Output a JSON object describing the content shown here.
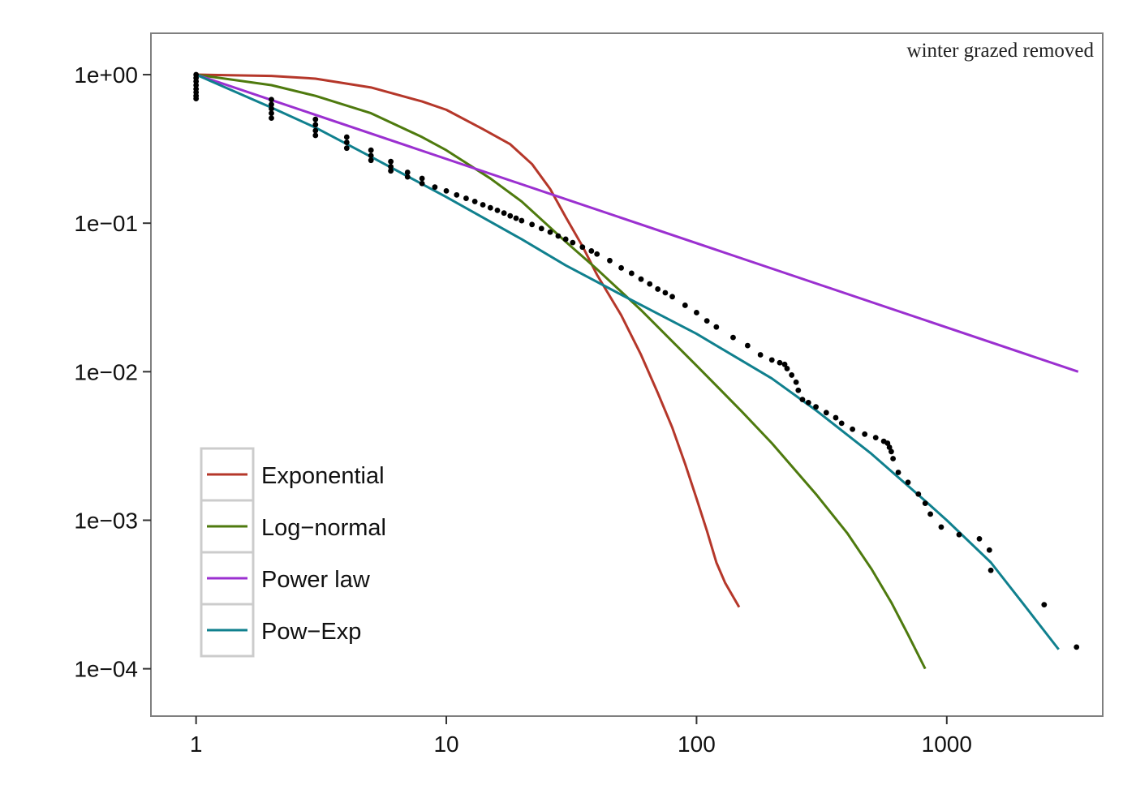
{
  "chart_data": {
    "type": "line",
    "title": "",
    "xlabel": "",
    "ylabel": "",
    "annotation": "winter grazed removed",
    "x_scale": "log10",
    "y_scale": "log10",
    "xlim": [
      0.66,
      4200
    ],
    "ylim": [
      4.8e-05,
      1.9
    ],
    "x_ticks": [
      {
        "value": 1,
        "label": "1"
      },
      {
        "value": 10,
        "label": "10"
      },
      {
        "value": 100,
        "label": "100"
      },
      {
        "value": 1000,
        "label": "1000"
      }
    ],
    "y_ticks": [
      {
        "value": 1,
        "label": "1e+00"
      },
      {
        "value": 0.1,
        "label": "1e−01"
      },
      {
        "value": 0.01,
        "label": "1e−02"
      },
      {
        "value": 0.001,
        "label": "1e−03"
      },
      {
        "value": 0.0001,
        "label": "1e−04"
      }
    ],
    "grid": false,
    "legend_position": "bottom-left",
    "legend": [
      {
        "name": "Exponential",
        "color": "#b5372a"
      },
      {
        "name": "Log−normal",
        "color": "#4e7a0e"
      },
      {
        "name": "Power law",
        "color": "#9b30d0"
      },
      {
        "name": "Pow−Exp",
        "color": "#10808e"
      }
    ],
    "series": [
      {
        "name": "Exponential",
        "color": "#b5372a",
        "points": [
          [
            1,
            1.0
          ],
          [
            2,
            0.98
          ],
          [
            3,
            0.94
          ],
          [
            5,
            0.82
          ],
          [
            8,
            0.66
          ],
          [
            10,
            0.58
          ],
          [
            14,
            0.43
          ],
          [
            18,
            0.34
          ],
          [
            22,
            0.25
          ],
          [
            26,
            0.17
          ],
          [
            30,
            0.11
          ],
          [
            35,
            0.07
          ],
          [
            40,
            0.045
          ],
          [
            50,
            0.024
          ],
          [
            60,
            0.013
          ],
          [
            70,
            0.0072
          ],
          [
            80,
            0.0042
          ],
          [
            90,
            0.0024
          ],
          [
            100,
            0.0014
          ],
          [
            110,
            0.00085
          ],
          [
            120,
            0.00052
          ],
          [
            130,
            0.00038
          ],
          [
            148,
            0.00026
          ]
        ]
      },
      {
        "name": "Log−normal",
        "color": "#4e7a0e",
        "points": [
          [
            1,
            1.0
          ],
          [
            2,
            0.85
          ],
          [
            3,
            0.72
          ],
          [
            5,
            0.55
          ],
          [
            8,
            0.38
          ],
          [
            10,
            0.31
          ],
          [
            15,
            0.2
          ],
          [
            20,
            0.14
          ],
          [
            30,
            0.075
          ],
          [
            40,
            0.049
          ],
          [
            60,
            0.026
          ],
          [
            80,
            0.016
          ],
          [
            100,
            0.011
          ],
          [
            150,
            0.0055
          ],
          [
            200,
            0.0033
          ],
          [
            300,
            0.0015
          ],
          [
            400,
            0.00082
          ],
          [
            500,
            0.00047
          ],
          [
            600,
            0.00028
          ],
          [
            700,
            0.00017
          ],
          [
            820,
            0.0001
          ]
        ]
      },
      {
        "name": "Power law",
        "color": "#9b30d0",
        "points": [
          [
            1,
            1.0
          ],
          [
            3350,
            0.01
          ]
        ]
      },
      {
        "name": "Pow−Exp",
        "color": "#10808e",
        "points": [
          [
            1,
            1.0
          ],
          [
            2,
            0.6
          ],
          [
            3,
            0.44
          ],
          [
            5,
            0.28
          ],
          [
            10,
            0.15
          ],
          [
            20,
            0.078
          ],
          [
            30,
            0.052
          ],
          [
            50,
            0.033
          ],
          [
            100,
            0.018
          ],
          [
            150,
            0.012
          ],
          [
            200,
            0.009
          ],
          [
            300,
            0.0055
          ],
          [
            500,
            0.0028
          ],
          [
            800,
            0.0014
          ],
          [
            1000,
            0.001
          ],
          [
            1500,
            0.00052
          ],
          [
            2000,
            0.00028
          ],
          [
            2800,
            0.000135
          ]
        ]
      }
    ],
    "observed": {
      "name": "observed",
      "color": "#000000",
      "points": [
        [
          1,
          1.0
        ],
        [
          1,
          0.95
        ],
        [
          1,
          0.9
        ],
        [
          1,
          0.85
        ],
        [
          1,
          0.8
        ],
        [
          1,
          0.76
        ],
        [
          1,
          0.72
        ],
        [
          1,
          0.69
        ],
        [
          2,
          0.68
        ],
        [
          2,
          0.63
        ],
        [
          2,
          0.59
        ],
        [
          2,
          0.55
        ],
        [
          2,
          0.51
        ],
        [
          3,
          0.5
        ],
        [
          3,
          0.46
        ],
        [
          3,
          0.42
        ],
        [
          3,
          0.39
        ],
        [
          4,
          0.38
        ],
        [
          4,
          0.35
        ],
        [
          4,
          0.32
        ],
        [
          5,
          0.31
        ],
        [
          5,
          0.285
        ],
        [
          5,
          0.265
        ],
        [
          6,
          0.26
        ],
        [
          6,
          0.24
        ],
        [
          6,
          0.225
        ],
        [
          7,
          0.22
        ],
        [
          7,
          0.205
        ],
        [
          8,
          0.2
        ],
        [
          8,
          0.185
        ],
        [
          9,
          0.175
        ],
        [
          10,
          0.165
        ],
        [
          11,
          0.155
        ],
        [
          12,
          0.147
        ],
        [
          13,
          0.14
        ],
        [
          14,
          0.133
        ],
        [
          15,
          0.127
        ],
        [
          16,
          0.122
        ],
        [
          17,
          0.117
        ],
        [
          18,
          0.112
        ],
        [
          19,
          0.108
        ],
        [
          20,
          0.104
        ],
        [
          22,
          0.098
        ],
        [
          24,
          0.092
        ],
        [
          26,
          0.087
        ],
        [
          28,
          0.082
        ],
        [
          30,
          0.078
        ],
        [
          32,
          0.074
        ],
        [
          35,
          0.069
        ],
        [
          38,
          0.065
        ],
        [
          40,
          0.062
        ],
        [
          45,
          0.056
        ],
        [
          50,
          0.05
        ],
        [
          55,
          0.046
        ],
        [
          60,
          0.042
        ],
        [
          65,
          0.039
        ],
        [
          70,
          0.036
        ],
        [
          75,
          0.034
        ],
        [
          80,
          0.032
        ],
        [
          90,
          0.028
        ],
        [
          100,
          0.025
        ],
        [
          110,
          0.022
        ],
        [
          120,
          0.02
        ],
        [
          140,
          0.017
        ],
        [
          160,
          0.015
        ],
        [
          180,
          0.013
        ],
        [
          200,
          0.012
        ],
        [
          215,
          0.0115
        ],
        [
          225,
          0.0112
        ],
        [
          230,
          0.0105
        ],
        [
          240,
          0.0095
        ],
        [
          250,
          0.0085
        ],
        [
          255,
          0.0075
        ],
        [
          265,
          0.0065
        ],
        [
          280,
          0.0062
        ],
        [
          300,
          0.0058
        ],
        [
          330,
          0.0053
        ],
        [
          360,
          0.0049
        ],
        [
          380,
          0.0045
        ],
        [
          420,
          0.0041
        ],
        [
          470,
          0.0038
        ],
        [
          520,
          0.0036
        ],
        [
          560,
          0.0034
        ],
        [
          580,
          0.0033
        ],
        [
          590,
          0.0031
        ],
        [
          600,
          0.0029
        ],
        [
          610,
          0.0026
        ],
        [
          640,
          0.0021
        ],
        [
          700,
          0.0018
        ],
        [
          770,
          0.0015
        ],
        [
          820,
          0.0013
        ],
        [
          860,
          0.0011
        ],
        [
          950,
          0.0009
        ],
        [
          1120,
          0.0008
        ],
        [
          1350,
          0.00075
        ],
        [
          1480,
          0.00063
        ],
        [
          1500,
          0.00046
        ],
        [
          2450,
          0.00027
        ],
        [
          3300,
          0.00014
        ]
      ]
    }
  }
}
